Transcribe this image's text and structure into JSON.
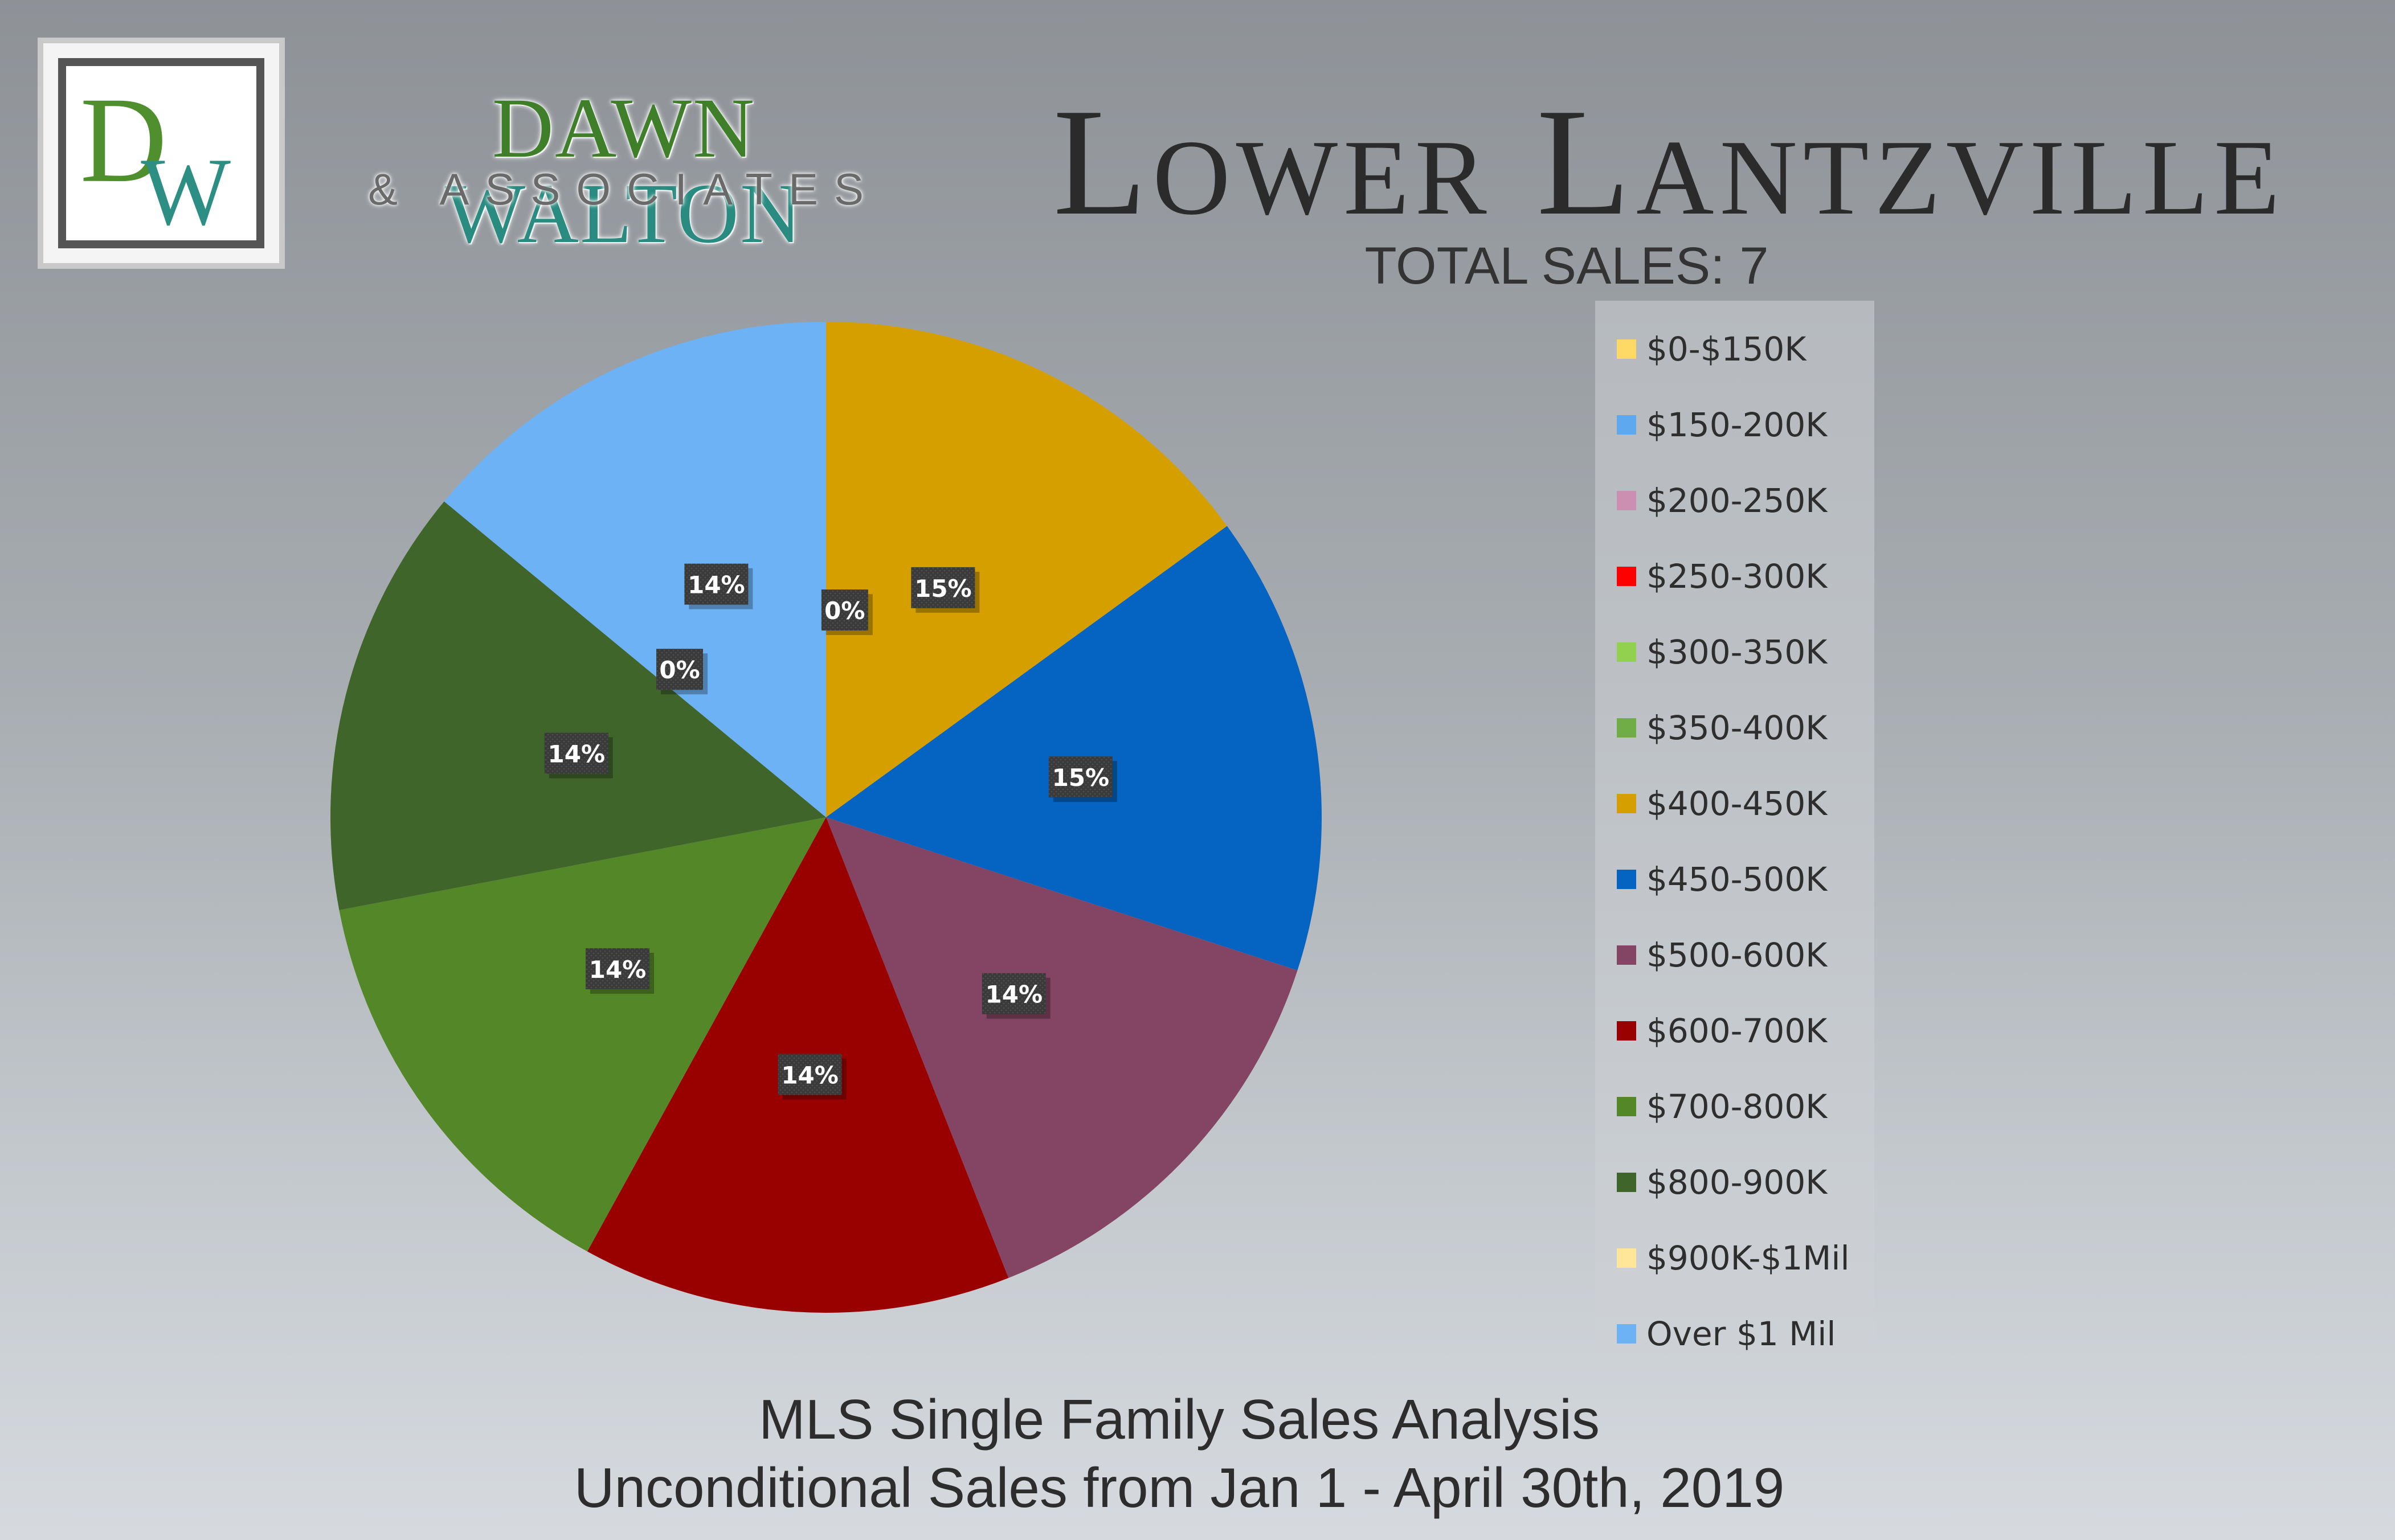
{
  "brand": {
    "logo_monogram": "DW",
    "name_part1": "DAWN",
    "name_part2": "WALTON",
    "subtitle": "& ASSOCIATES"
  },
  "header": {
    "title": "Lower Lantzville",
    "total_sales": "TOTAL SALES: 7"
  },
  "footer": {
    "line1": "MLS Single Family Sales Analysis",
    "line2": "Unconditional Sales from Jan 1 - April 30th, 2019"
  },
  "chart_data": {
    "type": "pie",
    "title": "Lower Lantzville",
    "legend_placement": "right",
    "slices": [
      {
        "label": "$0-$150K",
        "value": 0,
        "display": "0%",
        "color": "#ffd966"
      },
      {
        "label": "$150-200K",
        "value": 0,
        "display": "",
        "color": "#5ea8f0"
      },
      {
        "label": "$200-250K",
        "value": 0,
        "display": "",
        "color": "#cc8fb2"
      },
      {
        "label": "$250-300K",
        "value": 0,
        "display": "",
        "color": "#ff0000"
      },
      {
        "label": "$300-350K",
        "value": 0,
        "display": "",
        "color": "#92d050"
      },
      {
        "label": "$350-400K",
        "value": 0,
        "display": "",
        "color": "#70ad47"
      },
      {
        "label": "$400-450K",
        "value": 15,
        "display": "15%",
        "color": "#d59f00"
      },
      {
        "label": "$450-500K",
        "value": 15,
        "display": "15%",
        "color": "#0563c1"
      },
      {
        "label": "$500-600K",
        "value": 14,
        "display": "14%",
        "color": "#834563"
      },
      {
        "label": "$600-700K",
        "value": 14,
        "display": "14%",
        "color": "#990000"
      },
      {
        "label": "$700-800K",
        "value": 14,
        "display": "14%",
        "color": "#548727"
      },
      {
        "label": "$800-900K",
        "value": 14,
        "display": "14%",
        "color": "#3f652b"
      },
      {
        "label": "$900K-$1Mil",
        "value": 0,
        "display": "0%",
        "color": "#ffe699"
      },
      {
        "label": "Over $1 Mil",
        "value": 14,
        "display": "14%",
        "color": "#6cb2f5"
      }
    ]
  }
}
